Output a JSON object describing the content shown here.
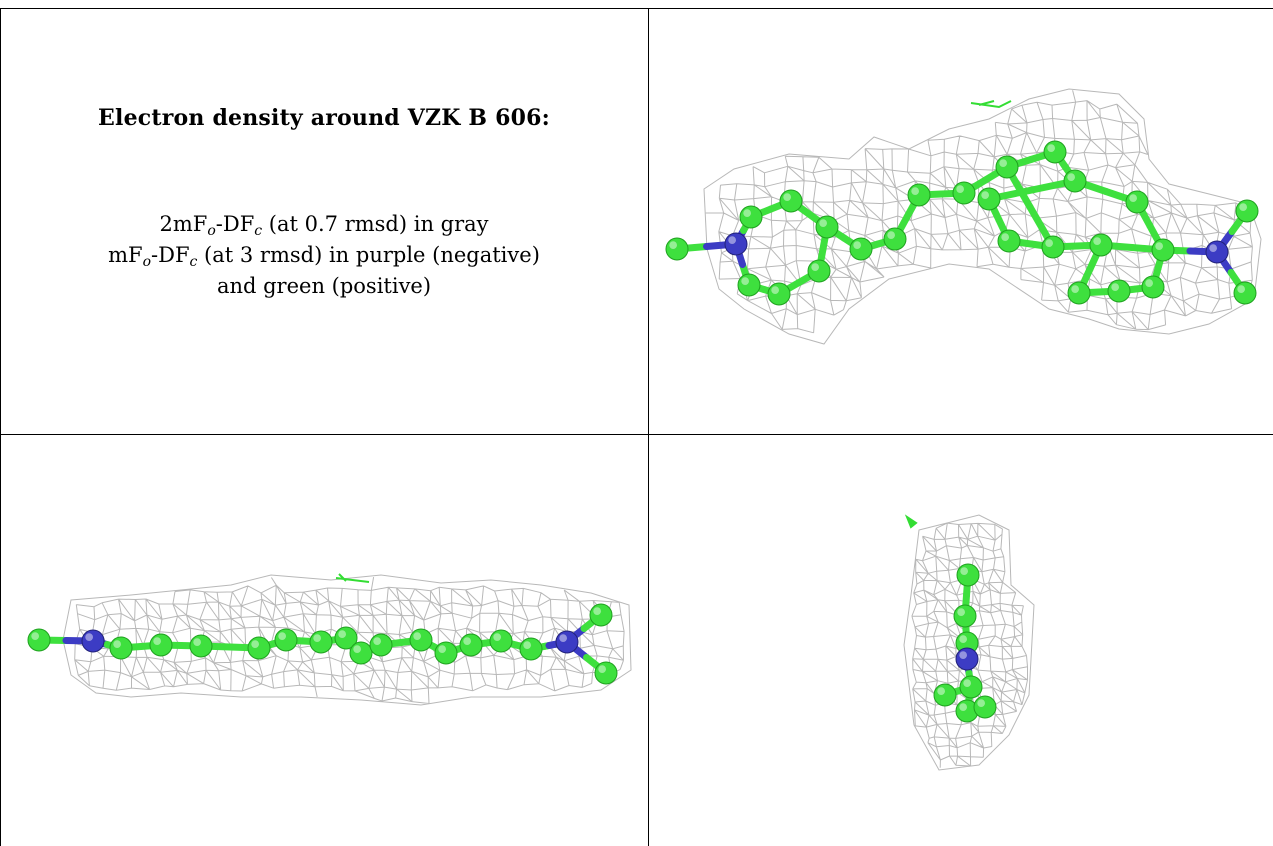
{
  "title": "Electron density around VZK B 606:",
  "caption": {
    "line1": {
      "a": "2mF",
      "o": "o",
      "b": "-DF",
      "c": "c",
      "rest": " (at 0.7 rmsd) in gray"
    },
    "line2": {
      "a": "mF",
      "o": "o",
      "b": "-DF",
      "c": "c",
      "rest": " (at 3 rmsd) in purple (negative)"
    },
    "line3": "and green (positive)"
  },
  "colors": {
    "mesh": "#b8b8b8",
    "carbon": "#3ee03e",
    "nitrogen": "#3c3cc4",
    "positive_density": "#33dd33",
    "border": "#000000"
  },
  "panels": [
    {
      "view": "front view"
    },
    {
      "view": "side view"
    },
    {
      "view": "end view"
    }
  ]
}
